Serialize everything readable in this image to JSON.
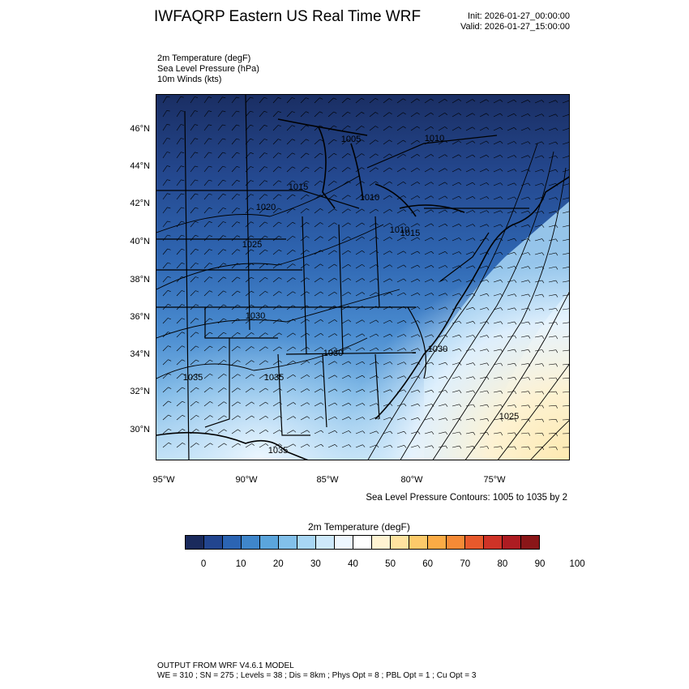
{
  "header": {
    "title": "IWFAQRP Eastern US Real Time WRF",
    "init": "Init: 2026-01-27_00:00:00",
    "valid": "Valid: 2026-01-27_15:00:00"
  },
  "fields": [
    "2m Temperature   (degF)",
    "Sea Level Pressure   (hPa)",
    "10m Winds   (kts)"
  ],
  "map": {
    "lat_labels": [
      "46°N",
      "44°N",
      "42°N",
      "40°N",
      "38°N",
      "36°N",
      "34°N",
      "32°N",
      "30°N"
    ],
    "lon_labels": [
      "95°W",
      "90°W",
      "85°W",
      "80°W",
      "75°W"
    ],
    "pressure_labels": [
      "1005",
      "1015",
      "1010",
      "1010",
      "1020",
      "1010",
      "1015",
      "1025",
      "1030",
      "1030",
      "1030",
      "1035",
      "1035",
      "1025",
      "1035"
    ],
    "contour_note": "Sea Level Pressure Contours: 1005 to 1035 by 2"
  },
  "colorbar": {
    "title": "2m Temperature  (degF)",
    "colors": [
      "#1a2a5c",
      "#22458f",
      "#2b64b3",
      "#3f86cb",
      "#5ba5dc",
      "#82c0ea",
      "#a8d6f4",
      "#cde8fa",
      "#eef7ff",
      "#ffffff",
      "#fff3d2",
      "#ffe3a0",
      "#fdca6a",
      "#fbab45",
      "#f58a36",
      "#e7592c",
      "#cf3327",
      "#ad1c22",
      "#8a1618"
    ],
    "labels": [
      "0",
      "10",
      "20",
      "30",
      "40",
      "50",
      "60",
      "70",
      "80",
      "90",
      "100"
    ]
  },
  "footer": {
    "line1": "OUTPUT FROM WRF V4.6.1 MODEL",
    "line2": "WE = 310 ; SN = 275 ; Levels = 38 ; Dis = 8km ; Phys Opt = 8 ; PBL Opt = 1 ; Cu Opt = 3"
  }
}
